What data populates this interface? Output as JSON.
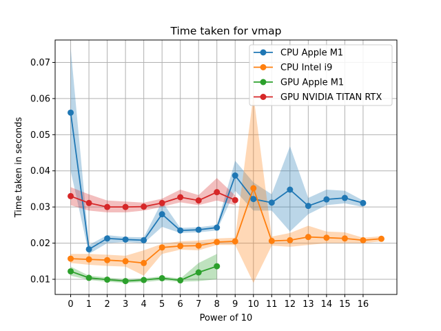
{
  "chart_data": {
    "type": "line",
    "title": "Time taken for vmap",
    "xlabel": "Power of 10",
    "ylabel": "Time taken in seconds",
    "xlim": [
      -0.85,
      17.85
    ],
    "ylim": [
      0.0058,
      0.0762
    ],
    "x_ticks": [
      0,
      1,
      2,
      3,
      4,
      5,
      6,
      7,
      8,
      9,
      10,
      11,
      12,
      13,
      14,
      15,
      16
    ],
    "x_tick_labels": [
      "0",
      "1",
      "2",
      "3",
      "4",
      "5",
      "6",
      "7",
      "8",
      "9",
      "10",
      "11",
      "12",
      "13",
      "14",
      "15",
      "16"
    ],
    "y_ticks": [
      0.01,
      0.02,
      0.03,
      0.04,
      0.05,
      0.06,
      0.07
    ],
    "y_tick_labels": [
      "0.01",
      "0.02",
      "0.03",
      "0.04",
      "0.05",
      "0.06",
      "0.07"
    ],
    "grid": true,
    "legend_position": "top-right",
    "series": [
      {
        "name": "CPU Apple M1",
        "color": "#1f77b4",
        "x": [
          0,
          1,
          2,
          3,
          4,
          5,
          6,
          7,
          8,
          9,
          10,
          11,
          12,
          13,
          14,
          15,
          16
        ],
        "values": [
          0.0561,
          0.0183,
          0.0213,
          0.021,
          0.0208,
          0.028,
          0.0235,
          0.0237,
          0.0243,
          0.0387,
          0.0322,
          0.0312,
          0.0348,
          0.0303,
          0.0321,
          0.0325,
          0.0311
        ],
        "lower": [
          0.04,
          0.017,
          0.02,
          0.0203,
          0.02,
          0.0245,
          0.0228,
          0.023,
          0.0235,
          0.0345,
          0.029,
          0.029,
          0.0232,
          0.028,
          0.0305,
          0.031,
          0.03
        ],
        "upper": [
          0.074,
          0.0195,
          0.0222,
          0.0217,
          0.0216,
          0.0315,
          0.0242,
          0.0244,
          0.025,
          0.0428,
          0.0368,
          0.0335,
          0.0468,
          0.0325,
          0.0348,
          0.0345,
          0.0318
        ]
      },
      {
        "name": "CPU Intel i9",
        "color": "#ff7f0e",
        "x": [
          0,
          1,
          2,
          3,
          4,
          5,
          6,
          7,
          8,
          9,
          10,
          11,
          12,
          13,
          14,
          15,
          16,
          17
        ],
        "values": [
          0.0157,
          0.0155,
          0.0153,
          0.015,
          0.0145,
          0.0188,
          0.0192,
          0.0193,
          0.0203,
          0.0205,
          0.0352,
          0.0206,
          0.0208,
          0.0217,
          0.0215,
          0.0213,
          0.0208,
          0.0212
        ],
        "lower": [
          0.0145,
          0.014,
          0.0137,
          0.0135,
          0.011,
          0.017,
          0.0182,
          0.018,
          0.0195,
          0.0195,
          0.009,
          0.0193,
          0.019,
          0.0195,
          0.02,
          0.02,
          0.02,
          0.0205
        ],
        "upper": [
          0.017,
          0.017,
          0.0168,
          0.0165,
          0.018,
          0.0198,
          0.0205,
          0.0207,
          0.0213,
          0.0215,
          0.061,
          0.0218,
          0.0228,
          0.0248,
          0.0232,
          0.023,
          0.0215,
          0.0219
        ]
      },
      {
        "name": "GPU Apple M1",
        "color": "#2ca02c",
        "x": [
          0,
          1,
          2,
          3,
          4,
          5,
          6,
          7,
          8
        ],
        "values": [
          0.0122,
          0.0104,
          0.0099,
          0.0095,
          0.0098,
          0.0103,
          0.0097,
          0.0119,
          0.0136
        ],
        "lower": [
          0.011,
          0.0098,
          0.0093,
          0.009,
          0.0092,
          0.0097,
          0.0093,
          0.0095,
          0.01
        ],
        "upper": [
          0.0135,
          0.011,
          0.0105,
          0.01,
          0.0103,
          0.0108,
          0.0102,
          0.0145,
          0.017
        ]
      },
      {
        "name": "GPU NVIDIA TITAN RTX",
        "color": "#d62728",
        "x": [
          0,
          1,
          2,
          3,
          4,
          5,
          6,
          7,
          8,
          9
        ],
        "values": [
          0.033,
          0.0311,
          0.03,
          0.03,
          0.0301,
          0.0311,
          0.0327,
          0.0318,
          0.0341,
          0.0319
        ],
        "lower": [
          0.0305,
          0.029,
          0.0285,
          0.0285,
          0.029,
          0.03,
          0.0313,
          0.0305,
          0.0318,
          0.0305
        ],
        "upper": [
          0.0355,
          0.0335,
          0.0318,
          0.0315,
          0.0312,
          0.0323,
          0.0348,
          0.0333,
          0.038,
          0.0332
        ]
      }
    ]
  }
}
